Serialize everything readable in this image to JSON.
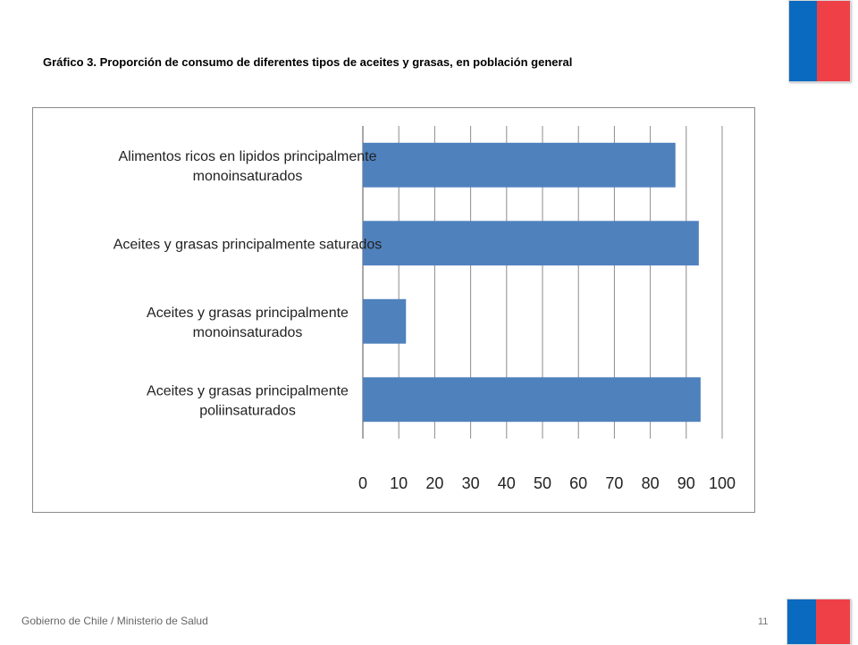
{
  "slide": {
    "title": "Gráfico 3. Proporción de consumo de diferentes tipos de aceites y grasas, en población general",
    "footer": "Gobierno de Chile / Ministerio de Salud",
    "page_number": "11"
  },
  "colors": {
    "bar": "#4f81bd",
    "grid": "#8c8c8c",
    "frame": "#8a8a8a",
    "flag_blue": "#0a6ac0",
    "flag_red": "#ef4048"
  },
  "chart_data": {
    "type": "bar",
    "orientation": "horizontal",
    "categories": [
      [
        "Alimentos ricos en lipidos principalmente",
        "monoinsaturados"
      ],
      [
        "Aceites y grasas principalmente saturados"
      ],
      [
        "Aceites y grasas principalmente",
        "monoinsaturados"
      ],
      [
        "Aceites y grasas principalmente",
        "poliinsaturados"
      ]
    ],
    "values": [
      87,
      93.5,
      12,
      94
    ],
    "xlim": [
      0,
      100
    ],
    "xticks": [
      "0",
      "10",
      "20",
      "30",
      "40",
      "50",
      "60",
      "70",
      "80",
      "90",
      "100"
    ],
    "grid": true,
    "legend": "none"
  }
}
